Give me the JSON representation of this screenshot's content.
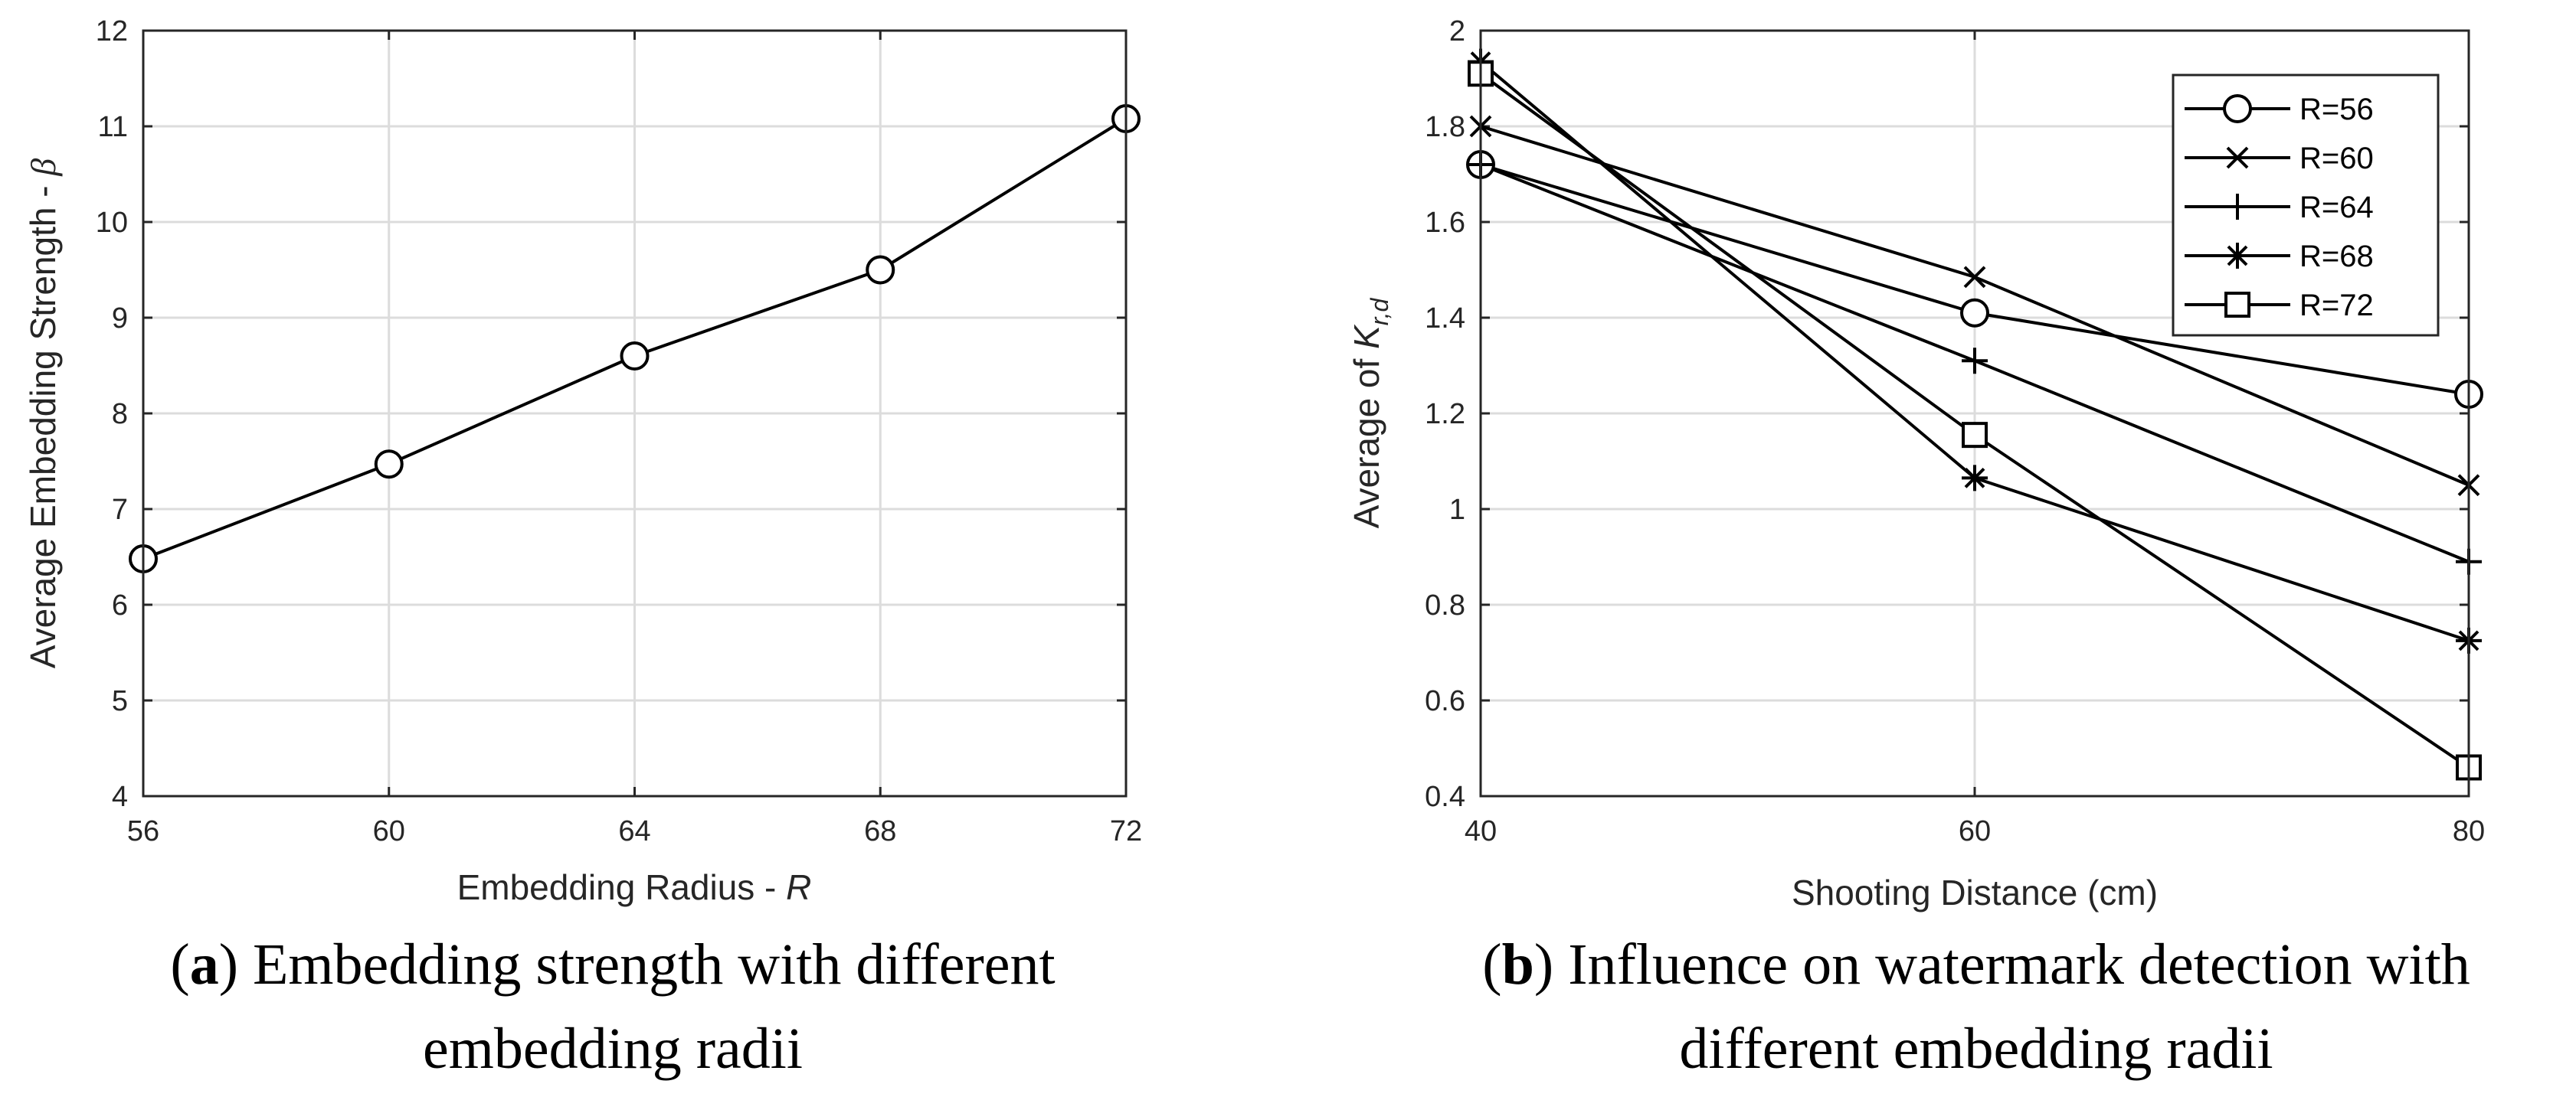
{
  "chart_data": [
    {
      "type": "line",
      "panel": "a",
      "title": "",
      "xlabel": "Embedding Radius - R",
      "xlabel_prefix": "Embedding Radius - ",
      "xlabel_var": "R",
      "ylabel": "Average Embedding Strength - β",
      "ylabel_prefix": "Average Embedding Strength - ",
      "ylabel_var": "β",
      "xlim": [
        56,
        72
      ],
      "ylim": [
        4,
        12
      ],
      "xticks": [
        56,
        60,
        64,
        68,
        72
      ],
      "yticks": [
        4,
        5,
        6,
        7,
        8,
        9,
        10,
        11,
        12
      ],
      "grid": true,
      "series": [
        {
          "name": "",
          "marker": "circle",
          "x": [
            56,
            60,
            64,
            68,
            72
          ],
          "y": [
            6.48,
            7.47,
            8.6,
            9.5,
            11.08
          ]
        }
      ],
      "caption": {
        "label": "a",
        "text": " Embedding strength with different",
        "line2": "embedding radii"
      }
    },
    {
      "type": "line",
      "panel": "b",
      "title": "",
      "xlabel": "Shooting Distance (cm)",
      "ylabel": "Average of K_r,d",
      "ylabel_prefix": "Average of ",
      "ylabel_var": "K",
      "ylabel_sub": "r,d",
      "xlim": [
        40,
        80
      ],
      "ylim": [
        0.4,
        2
      ],
      "xticks": [
        40,
        60,
        80
      ],
      "yticks": [
        0.4,
        0.6,
        0.8,
        1,
        1.2,
        1.4,
        1.6,
        1.8,
        2
      ],
      "grid": true,
      "legend": "top-right",
      "series": [
        {
          "name": "R=56",
          "marker": "circle",
          "x": [
            40,
            60,
            80
          ],
          "y": [
            1.72,
            1.41,
            1.24
          ]
        },
        {
          "name": "R=60",
          "marker": "x",
          "x": [
            40,
            60,
            80
          ],
          "y": [
            1.8,
            1.485,
            1.05
          ]
        },
        {
          "name": "R=64",
          "marker": "plus",
          "x": [
            40,
            60,
            80
          ],
          "y": [
            1.72,
            1.31,
            0.89
          ]
        },
        {
          "name": "R=68",
          "marker": "star",
          "x": [
            40,
            60,
            80
          ],
          "y": [
            1.935,
            1.065,
            0.725
          ]
        },
        {
          "name": "R=72",
          "marker": "square",
          "x": [
            40,
            60,
            80
          ],
          "y": [
            1.91,
            1.155,
            0.46
          ]
        }
      ],
      "caption": {
        "label": "b",
        "text": " Influence on watermark detection with",
        "line2": "different embedding radii"
      }
    }
  ]
}
